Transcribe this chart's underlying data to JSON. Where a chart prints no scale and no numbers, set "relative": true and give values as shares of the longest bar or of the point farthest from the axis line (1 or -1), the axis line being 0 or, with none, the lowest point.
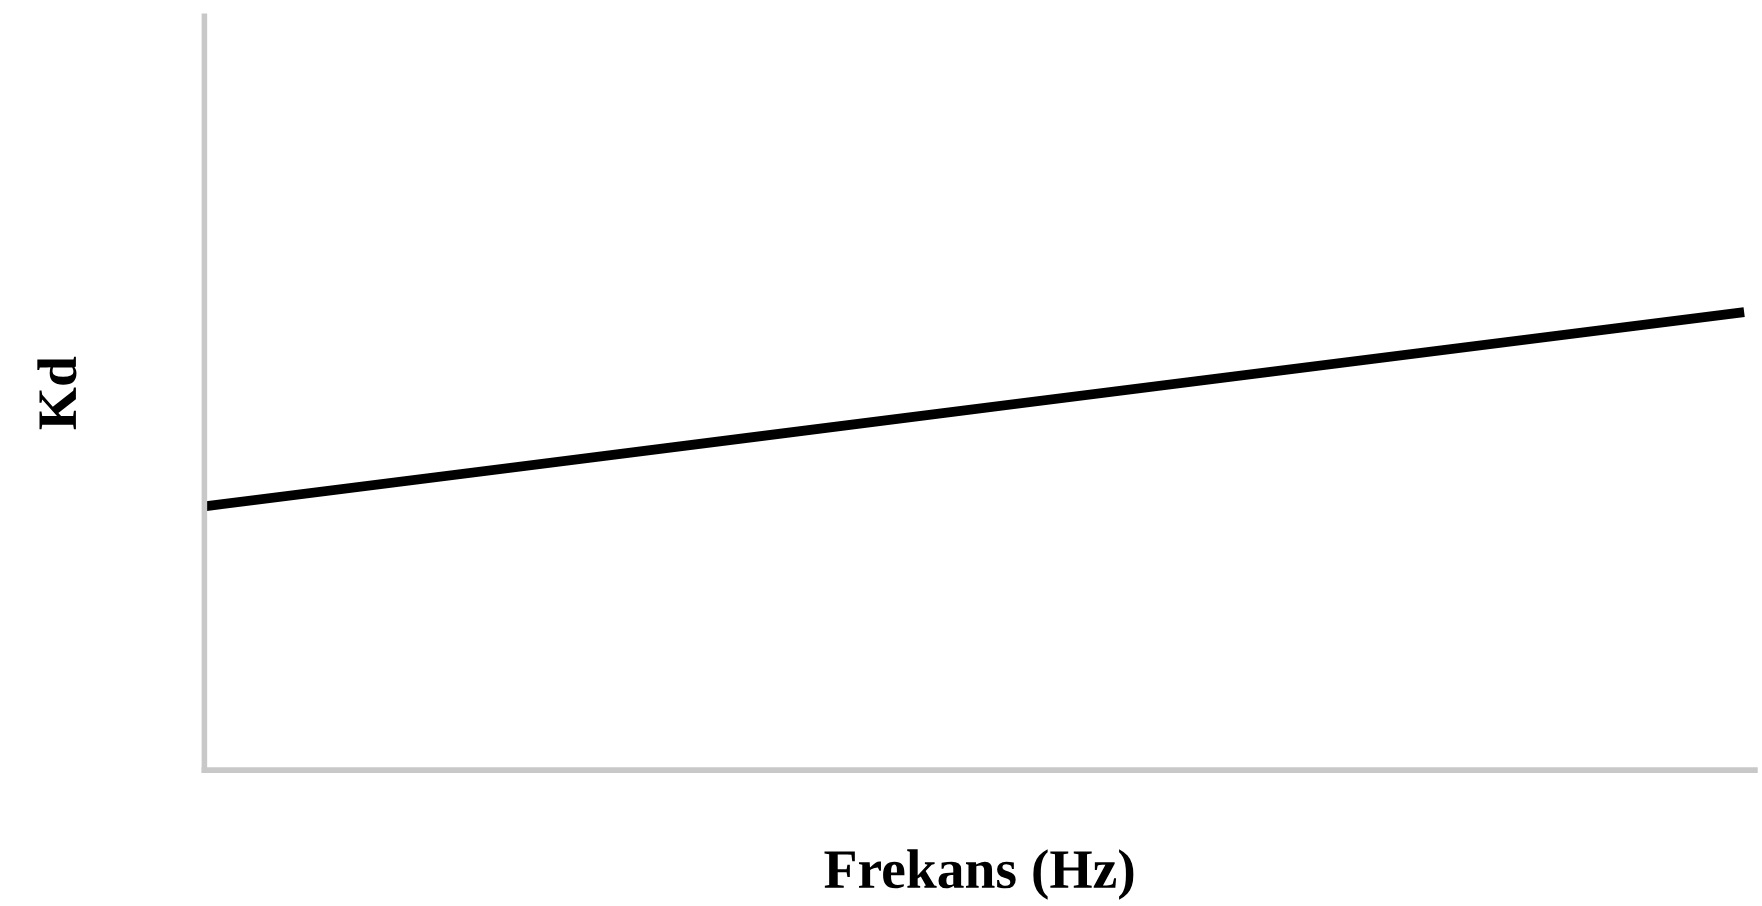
{
  "chart_data": {
    "type": "line",
    "relative": true,
    "xlabel": "Frekans (Hz)",
    "ylabel": "Kd",
    "categories": [
      null,
      null
    ],
    "series": [
      {
        "color": "#000000",
        "values": [
          0.576,
          1
        ]
      }
    ],
    "grid": false,
    "legend": false,
    "marker": "none",
    "line_style": "solid"
  }
}
